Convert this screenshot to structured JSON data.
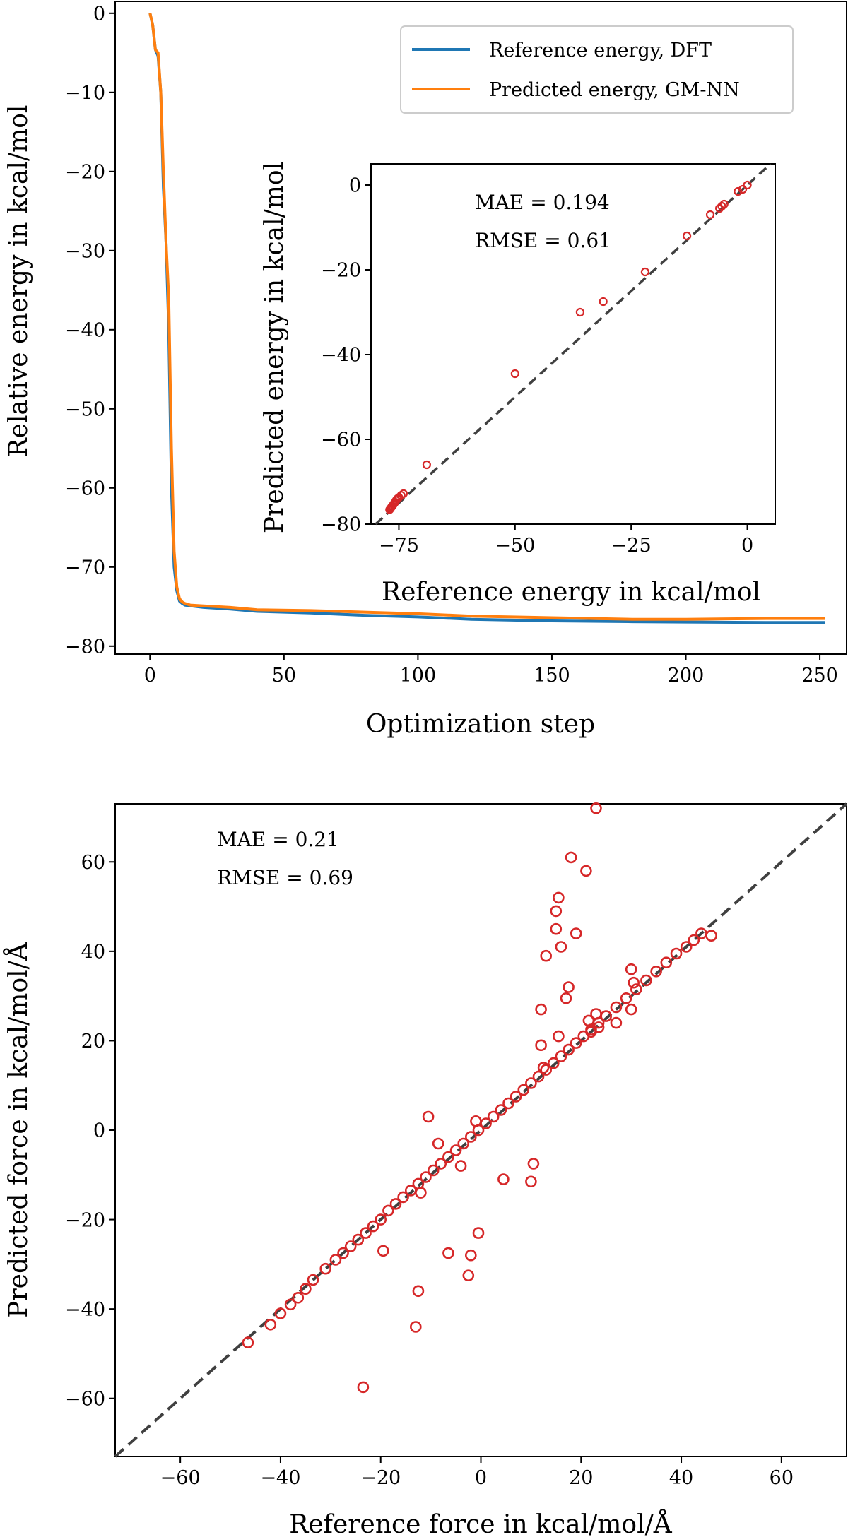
{
  "colors": {
    "dft": "#1f77b4",
    "gmnn": "#ff7f0e",
    "scatter": "#d62728",
    "diagonal": "#404040",
    "background": "#ffffff"
  },
  "chart_data": [
    {
      "type": "line",
      "xlabel": "Optimization step",
      "ylabel": "Relative energy in kcal/mol",
      "xlim": [
        -13,
        260
      ],
      "ylim": [
        -81,
        1.5
      ],
      "xticks": [
        0,
        50,
        100,
        150,
        200,
        250
      ],
      "xtick_labels": [
        "0",
        "50",
        "100",
        "150",
        "200",
        "250"
      ],
      "yticks": [
        0,
        -10,
        -20,
        -30,
        -40,
        -50,
        -60,
        -70,
        -80
      ],
      "ytick_labels": [
        "0",
        "−10",
        "−20",
        "−30",
        "−40",
        "−50",
        "−60",
        "−70",
        "−80"
      ],
      "legend": {
        "position": "top-right",
        "entries": [
          "Reference energy, DFT",
          "Predicted energy, GM-NN"
        ]
      },
      "series": [
        {
          "name": "Reference energy, DFT",
          "color": "#1f77b4",
          "x": [
            0,
            1,
            2,
            3,
            4,
            5,
            6,
            7,
            8,
            9,
            10,
            11,
            12,
            13,
            15,
            20,
            30,
            40,
            60,
            80,
            100,
            120,
            150,
            180,
            200,
            230,
            252
          ],
          "y": [
            0,
            -1.5,
            -4.6,
            -5.4,
            -10,
            -22,
            -29,
            -40,
            -60,
            -70,
            -73,
            -74.3,
            -74.6,
            -74.8,
            -74.9,
            -75.1,
            -75.3,
            -75.6,
            -75.8,
            -76.1,
            -76.3,
            -76.6,
            -76.8,
            -76.9,
            -76.95,
            -77.0,
            -77.0
          ]
        },
        {
          "name": "Predicted energy, GM-NN",
          "color": "#ff7f0e",
          "x": [
            0,
            1,
            2,
            3,
            4,
            5,
            6,
            7,
            8,
            9,
            10,
            11,
            12,
            13,
            15,
            20,
            30,
            40,
            60,
            80,
            100,
            120,
            150,
            180,
            200,
            230,
            252
          ],
          "y": [
            0,
            -1.5,
            -4.6,
            -5.0,
            -10,
            -20,
            -29,
            -36,
            -55,
            -68,
            -72.5,
            -74.0,
            -74.4,
            -74.6,
            -74.8,
            -74.9,
            -75.1,
            -75.4,
            -75.5,
            -75.7,
            -75.9,
            -76.2,
            -76.4,
            -76.6,
            -76.6,
            -76.5,
            -76.5
          ]
        }
      ]
    },
    {
      "type": "scatter",
      "inset": true,
      "xlabel": "Reference energy in kcal/mol",
      "ylabel": "Predicted energy in kcal/mol",
      "xlim": [
        -81,
        6
      ],
      "ylim": [
        -80,
        5
      ],
      "xticks": [
        -75,
        -50,
        -25,
        0
      ],
      "xtick_labels": [
        "−75",
        "−50",
        "−25",
        "0"
      ],
      "yticks": [
        0,
        -20,
        -40,
        -60,
        -80
      ],
      "ytick_labels": [
        "0",
        "−20",
        "−40",
        "−60",
        "−80"
      ],
      "annotations": [
        "MAE = 0.194",
        "RMSE = 0.61"
      ],
      "x": [
        0,
        -1,
        -2,
        -5,
        -5.5,
        -6,
        -8,
        -13,
        -22,
        -31,
        -36,
        -50,
        -69,
        -74,
        -74.5,
        -75,
        -75.3,
        -75.6,
        -75.8,
        -76,
        -76.2,
        -76.4,
        -76.6,
        -76.8,
        -77
      ],
      "y": [
        0,
        -1,
        -1.5,
        -4.5,
        -5,
        -5.5,
        -7,
        -12,
        -20.5,
        -27.5,
        -30,
        -44.5,
        -66,
        -72.8,
        -73.2,
        -73.7,
        -74,
        -74.4,
        -74.8,
        -75.1,
        -75.4,
        -75.7,
        -76,
        -76.3,
        -76.6
      ]
    },
    {
      "type": "scatter",
      "xlabel": "Reference force in kcal/mol/Å",
      "ylabel": "Predicted force in kcal/mol/Å",
      "xlim": [
        -73,
        73
      ],
      "ylim": [
        -73,
        73
      ],
      "xticks": [
        -60,
        -40,
        -20,
        0,
        20,
        40,
        60
      ],
      "xtick_labels": [
        "−60",
        "−40",
        "−20",
        "0",
        "20",
        "40",
        "60"
      ],
      "yticks": [
        60,
        40,
        20,
        0,
        -20,
        -40,
        -60
      ],
      "ytick_labels": [
        "60",
        "40",
        "20",
        "0",
        "−20",
        "−40",
        "−60"
      ],
      "annotations": [
        "MAE = 0.21",
        "RMSE = 0.69"
      ],
      "x": [
        -46.5,
        -42,
        -40,
        -38,
        -36.5,
        -35,
        -33.5,
        -31,
        -29,
        -27.5,
        -26,
        -24.5,
        -23,
        -21.5,
        -20,
        -18.5,
        -17,
        -15.5,
        -14,
        -12.5,
        -11,
        -9.5,
        -8,
        -6.5,
        -5,
        -3.5,
        -2,
        -0.5,
        1,
        2.5,
        4,
        5.5,
        7,
        8.5,
        10,
        11.5,
        13,
        14.5,
        16,
        17.5,
        19,
        20.5,
        22,
        23.5,
        25,
        27,
        29,
        31,
        33,
        35,
        37,
        39,
        41,
        42.5,
        44,
        46,
        -23.5,
        -13,
        -12.5,
        -2.5,
        -2,
        -6.5,
        -0.5,
        -19.5,
        4.5,
        10,
        10.5,
        12,
        12,
        13,
        15,
        15,
        15.5,
        16,
        17,
        17.5,
        18,
        19,
        21,
        21.5,
        23,
        23,
        23.5,
        30,
        30.5,
        15.5,
        12.5,
        -10.5,
        -8.5,
        -12,
        -1,
        -4,
        22,
        27,
        30
      ],
      "y": [
        -47.5,
        -43.5,
        -41,
        -39,
        -37.5,
        -35.5,
        -33.5,
        -31,
        -29,
        -27.5,
        -26,
        -24.5,
        -23,
        -21.5,
        -20,
        -18,
        -16.5,
        -15,
        -13.5,
        -12,
        -10.5,
        -9,
        -7.5,
        -6,
        -4.5,
        -3,
        -1.5,
        0,
        1.5,
        3,
        4.5,
        6,
        7.5,
        9,
        10.5,
        12,
        13.5,
        15,
        16.5,
        18,
        19.5,
        21,
        22.5,
        24,
        25.5,
        27.5,
        29.5,
        31.5,
        33.5,
        35.5,
        37.5,
        39.5,
        41,
        42.5,
        44,
        43.5,
        -57.5,
        -44,
        -36,
        -32.5,
        -28,
        -27.5,
        -23,
        -27,
        -11,
        -11.5,
        -7.5,
        19,
        27,
        39,
        45,
        49,
        52,
        41,
        29.5,
        32,
        61,
        44,
        58,
        24.5,
        72,
        26,
        23,
        36,
        33,
        21,
        14,
        3,
        -3,
        -14,
        2,
        -8,
        22,
        24,
        27
      ]
    }
  ]
}
